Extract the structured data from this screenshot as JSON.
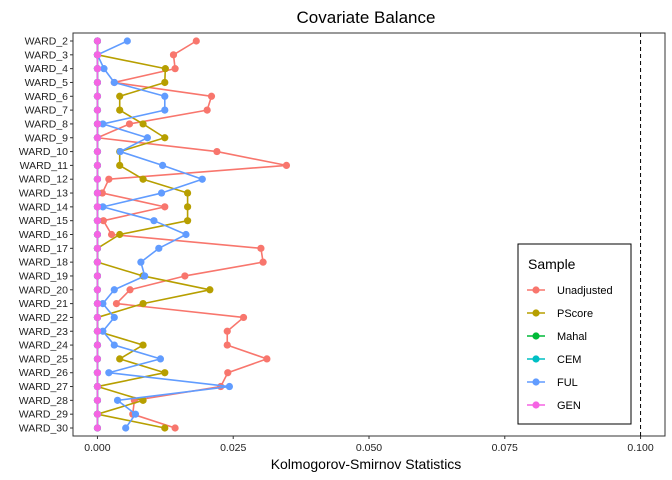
{
  "chart_data": {
    "type": "line",
    "title": "Covariate Balance",
    "xlabel": "Kolmogorov-Smirnov Statistics",
    "ylabel": "",
    "xlim": [
      -0.0045,
      0.1045
    ],
    "x_ticks": [
      0.0,
      0.025,
      0.05,
      0.075,
      0.1
    ],
    "x_tick_labels": [
      "0.000",
      "0.025",
      "0.050",
      "0.075",
      "0.100"
    ],
    "threshold": 0.1,
    "grid": false,
    "legend_title": "Sample",
    "legend_position": "right",
    "categories": [
      "WARD_2",
      "WARD_3",
      "WARD_4",
      "WARD_5",
      "WARD_6",
      "WARD_7",
      "WARD_8",
      "WARD_9",
      "WARD_10",
      "WARD_11",
      "WARD_12",
      "WARD_13",
      "WARD_14",
      "WARD_15",
      "WARD_16",
      "WARD_17",
      "WARD_18",
      "WARD_19",
      "WARD_20",
      "WARD_21",
      "WARD_22",
      "WARD_23",
      "WARD_24",
      "WARD_25",
      "WARD_26",
      "WARD_27",
      "WARD_28",
      "WARD_29",
      "WARD_30"
    ],
    "series": [
      {
        "name": "Unadjusted",
        "color": "#F8766D",
        "values": [
          0.0182,
          0.014,
          0.0143,
          0.0031,
          0.021,
          0.0202,
          0.0059,
          0.0,
          0.022,
          0.0348,
          0.0021,
          0.0009,
          0.0124,
          0.0011,
          0.0026,
          0.0301,
          0.0305,
          0.0161,
          0.006,
          0.0035,
          0.0269,
          0.0239,
          0.0239,
          0.0312,
          0.024,
          0.0227,
          0.0068,
          0.0065,
          0.0143
        ]
      },
      {
        "name": "PScore",
        "color": "#B79F00",
        "values": [
          0.0,
          0.0,
          0.0125,
          0.0124,
          0.0041,
          0.0041,
          0.0084,
          0.0124,
          0.0041,
          0.0041,
          0.0084,
          0.0166,
          0.0166,
          0.0166,
          0.0041,
          0.0,
          0.0,
          0.0084,
          0.0207,
          0.0084,
          0.0,
          0.0,
          0.0084,
          0.0041,
          0.0124,
          0.0,
          0.0084,
          0.0,
          0.0124
        ]
      },
      {
        "name": "Mahal",
        "color": "#00BA38",
        "values": [
          0,
          0,
          0,
          0,
          0,
          0,
          0,
          0,
          0,
          0,
          0,
          0,
          0,
          0,
          0,
          0,
          0,
          0,
          0,
          0,
          0,
          0,
          0,
          0,
          0,
          0,
          0,
          0,
          0
        ]
      },
      {
        "name": "CEM",
        "color": "#00BFC4",
        "values": [
          0,
          0,
          0,
          0,
          0,
          0,
          0,
          0,
          0,
          0,
          0,
          0,
          0,
          0,
          0,
          0,
          0,
          0,
          0,
          0,
          0,
          0,
          0,
          0,
          0,
          0,
          0,
          0,
          0
        ]
      },
      {
        "name": "FUL",
        "color": "#619CFF",
        "values": [
          0.0055,
          0.0,
          0.0012,
          0.0031,
          0.0124,
          0.0124,
          0.001,
          0.0092,
          0.0042,
          0.012,
          0.0193,
          0.0118,
          0.001,
          0.0104,
          0.0163,
          0.0113,
          0.008,
          0.0087,
          0.0031,
          0.001,
          0.0031,
          0.001,
          0.0031,
          0.0116,
          0.0021,
          0.0243,
          0.0037,
          0.007,
          0.0052
        ]
      },
      {
        "name": "GEN",
        "color": "#F564E3",
        "values": [
          0,
          0,
          0,
          0,
          0,
          0,
          0,
          0,
          0,
          0,
          0,
          0,
          0,
          0,
          0,
          0,
          0,
          0,
          0,
          0,
          0,
          0,
          0,
          0,
          0,
          0,
          0,
          0,
          0
        ]
      }
    ]
  }
}
